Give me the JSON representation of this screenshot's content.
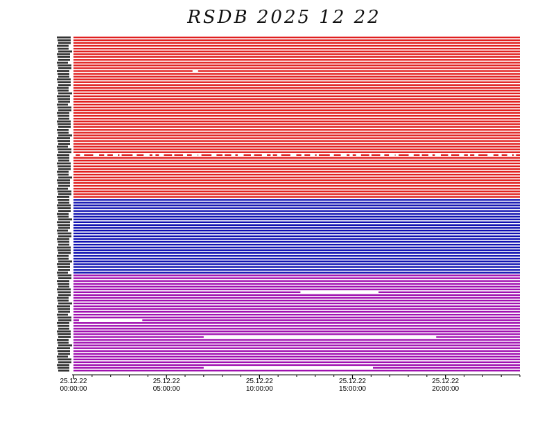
{
  "chart_data": {
    "type": "line",
    "title": "RSDB  2025  12  22",
    "x_unit": "hours",
    "xlim": [
      0,
      24
    ],
    "x_ticks": [
      {
        "value": 0,
        "date": "25.12.22",
        "time": "00:00:00"
      },
      {
        "value": 5,
        "date": "25.12.22",
        "time": "05:00:00"
      },
      {
        "value": 10,
        "date": "25.12.22",
        "time": "10:00:00"
      },
      {
        "value": 15,
        "date": "25.12.22",
        "time": "15:00:00"
      },
      {
        "value": 20,
        "date": "25.12.22",
        "time": "20:00:00"
      }
    ],
    "minor_tick_step_hours": 1,
    "groups": [
      {
        "color": "#e02020",
        "channels": 58
      },
      {
        "color": "#1010b0",
        "channels": 27
      },
      {
        "color": "#a010b0",
        "channels": 35
      }
    ],
    "gaps": [
      {
        "channel": 12,
        "start": 6.4,
        "end": 6.7
      },
      {
        "channel": 42,
        "start": 0.0,
        "end": 24.0,
        "intermittent": true
      },
      {
        "channel": 91,
        "start": 12.2,
        "end": 16.4
      },
      {
        "channel": 101,
        "start": 0.3,
        "end": 3.7
      },
      {
        "channel": 107,
        "start": 7.0,
        "end": 19.5
      },
      {
        "channel": 118,
        "start": 7.0,
        "end": 16.1
      }
    ]
  }
}
